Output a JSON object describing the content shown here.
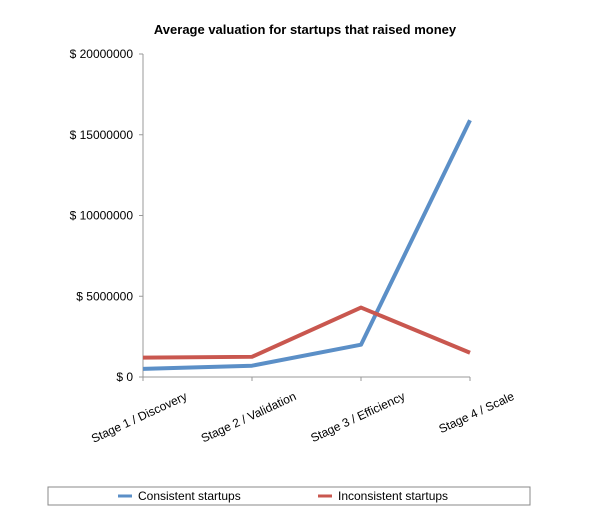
{
  "chart_data": {
    "type": "line",
    "title": "Average valuation for startups that raised money",
    "categories": [
      "Stage 1 / Discovery",
      "Stage 2 / Validation",
      "Stage 3 / Efficiency",
      "Stage 4 / Scale"
    ],
    "series": [
      {
        "name": "Consistent startups",
        "color": "#5b8fc7",
        "values": [
          500000,
          700000,
          2000000,
          15900000
        ]
      },
      {
        "name": "Inconsistent startups",
        "color": "#c9574f",
        "values": [
          1200000,
          1250000,
          4300000,
          1500000
        ]
      }
    ],
    "ylim": [
      0,
      20000000
    ],
    "yticks": [
      {
        "value": 0,
        "label": "$ 0"
      },
      {
        "value": 5000000,
        "label": "$ 5000000"
      },
      {
        "value": 10000000,
        "label": "$ 10000000"
      },
      {
        "value": 15000000,
        "label": "$ 15000000"
      },
      {
        "value": 20000000,
        "label": "$ 20000000"
      }
    ],
    "grid": false,
    "legend": "bottom"
  }
}
